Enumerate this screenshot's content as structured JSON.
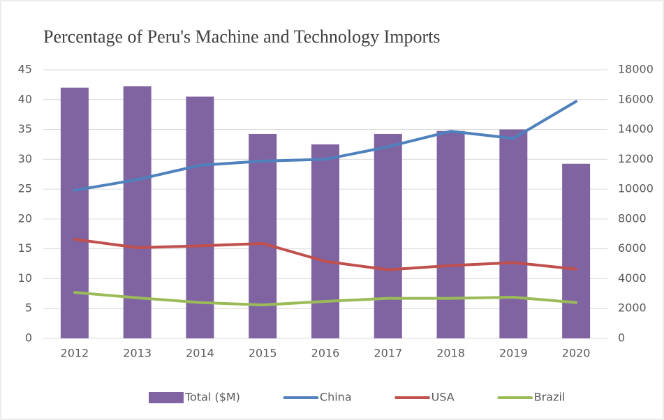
{
  "chart_data": {
    "type": "bar-line",
    "title": "Percentage of Peru's Machine and Technology Imports",
    "categories": [
      "2012",
      "2013",
      "2014",
      "2015",
      "2016",
      "2017",
      "2018",
      "2019",
      "2020"
    ],
    "series": [
      {
        "name": "Total ($M)",
        "type": "bar",
        "axis": "y2",
        "color": "#8064a2",
        "values": [
          16800,
          16900,
          16200,
          13700,
          13000,
          13700,
          13900,
          14000,
          11700
        ]
      },
      {
        "name": "China",
        "type": "line",
        "color": "#4f81bd",
        "values": [
          24.8,
          26.6,
          29.0,
          29.7,
          30.0,
          32.1,
          34.7,
          33.5,
          39.7
        ]
      },
      {
        "name": "USA",
        "type": "line",
        "color": "#c0504d",
        "values": [
          16.6,
          15.2,
          15.5,
          15.9,
          12.9,
          11.5,
          12.2,
          12.7,
          11.6
        ]
      },
      {
        "name": "Brazil",
        "type": "line",
        "color": "#9bbb59",
        "values": [
          7.7,
          6.8,
          6.0,
          5.6,
          6.2,
          6.7,
          6.7,
          6.9,
          6.0
        ]
      }
    ],
    "ylim": [
      0,
      45
    ],
    "yticks": [
      0,
      5,
      10,
      15,
      20,
      25,
      30,
      35,
      40,
      45
    ],
    "y2lim": [
      0,
      18000
    ],
    "y2ticks": [
      0,
      2000,
      4000,
      6000,
      8000,
      10000,
      12000,
      14000,
      16000,
      18000
    ],
    "grid": true,
    "legend": "bottom"
  }
}
